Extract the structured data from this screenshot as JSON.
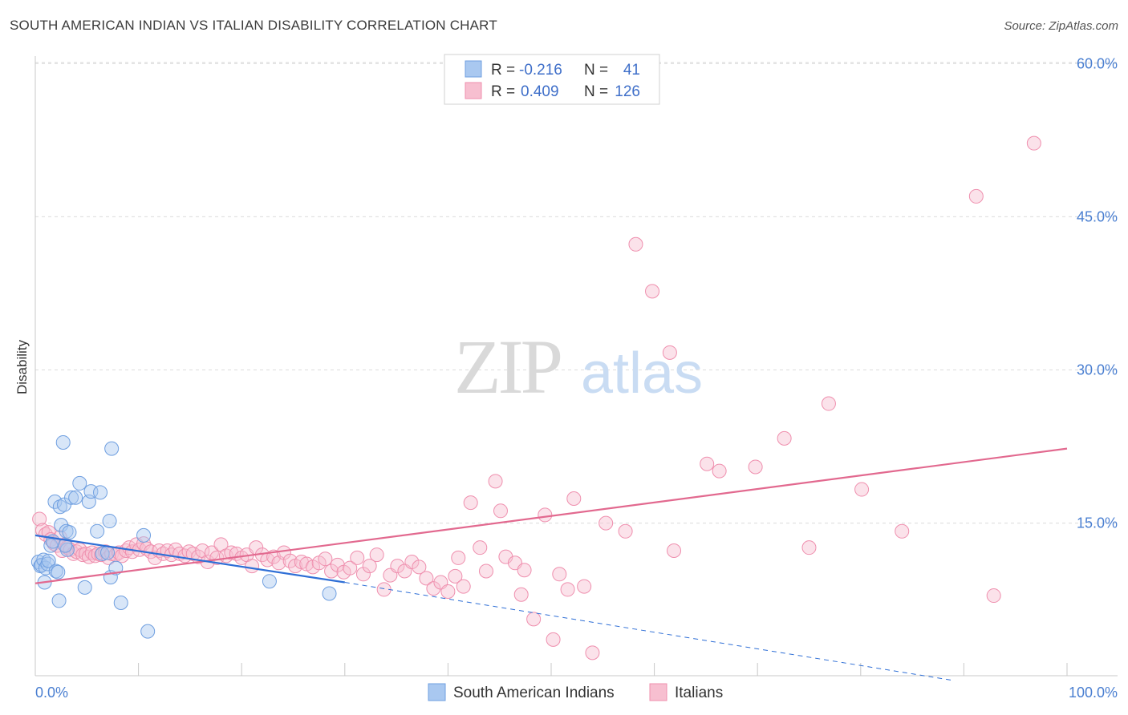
{
  "chart_data": {
    "type": "scatter",
    "title": "SOUTH AMERICAN INDIAN VS ITALIAN DISABILITY CORRELATION CHART",
    "source": "Source: ZipAtlas.com",
    "xlabel": "",
    "ylabel": "Disability",
    "xlim": [
      0,
      100
    ],
    "ylim": [
      0,
      63
    ],
    "x_tick_labels": [
      "0.0%",
      "100.0%"
    ],
    "y_ticks": [
      15,
      30,
      45,
      60
    ],
    "y_tick_labels": [
      "15.0%",
      "30.0%",
      "45.0%",
      "60.0%"
    ],
    "watermark": {
      "zip": "ZIP",
      "atlas": "atlas"
    },
    "colors": {
      "blue_fill": "#a9c8f0",
      "blue_stroke": "#6f9fe0",
      "blue_line": "#2f6fd6",
      "pink_fill": "#f7bfd0",
      "pink_stroke": "#ef8fae",
      "pink_line": "#e2698f",
      "grid": "#dcdcdc",
      "axis": "#c8c8c8"
    },
    "legend": {
      "rows": [
        {
          "r_label": "R =",
          "r_value": "-0.216",
          "n_label": "N =",
          "n_value": "41"
        },
        {
          "r_label": "R =",
          "r_value": "0.409",
          "n_label": "N =",
          "n_value": "126"
        }
      ]
    },
    "series": [
      {
        "name": "South American Indians",
        "trend": {
          "x0": 0,
          "y0": 13.8,
          "x1": 30,
          "y1": 9.2,
          "dash_x1": 100,
          "dash_y1": -2.2
        },
        "points": [
          [
            0.3,
            11.2
          ],
          [
            0.5,
            10.8
          ],
          [
            0.6,
            10.9
          ],
          [
            0.8,
            11.4
          ],
          [
            0.9,
            9.2
          ],
          [
            1.0,
            10.6
          ],
          [
            1.2,
            11.0
          ],
          [
            1.3,
            11.3
          ],
          [
            1.5,
            12.8
          ],
          [
            1.7,
            13.2
          ],
          [
            1.9,
            17.1
          ],
          [
            2.0,
            10.3
          ],
          [
            2.2,
            10.2
          ],
          [
            2.3,
            7.4
          ],
          [
            2.4,
            16.6
          ],
          [
            2.5,
            14.8
          ],
          [
            2.7,
            22.9
          ],
          [
            2.8,
            16.8
          ],
          [
            3.0,
            14.2
          ],
          [
            3.1,
            12.4
          ],
          [
            3.3,
            14.1
          ],
          [
            3.5,
            17.5
          ],
          [
            3.9,
            17.5
          ],
          [
            4.3,
            18.9
          ],
          [
            4.8,
            8.7
          ],
          [
            5.2,
            17.1
          ],
          [
            5.4,
            18.1
          ],
          [
            6.0,
            14.2
          ],
          [
            6.3,
            18.0
          ],
          [
            6.5,
            12.0
          ],
          [
            7.0,
            12.1
          ],
          [
            7.2,
            15.2
          ],
          [
            7.3,
            9.7
          ],
          [
            7.4,
            22.3
          ],
          [
            7.8,
            10.6
          ],
          [
            8.3,
            7.2
          ],
          [
            10.5,
            13.8
          ],
          [
            10.9,
            4.4
          ],
          [
            22.7,
            9.3
          ],
          [
            28.5,
            8.1
          ],
          [
            2.9,
            12.8
          ]
        ]
      },
      {
        "name": "Italians",
        "trend": {
          "x0": 0,
          "y0": 9.1,
          "x1": 100,
          "y1": 22.3
        },
        "points": [
          [
            0.4,
            15.4
          ],
          [
            0.7,
            14.3
          ],
          [
            1.0,
            13.9
          ],
          [
            1.3,
            14.1
          ],
          [
            1.5,
            13.4
          ],
          [
            1.8,
            13.0
          ],
          [
            2.1,
            12.8
          ],
          [
            2.4,
            13.6
          ],
          [
            2.6,
            12.3
          ],
          [
            2.9,
            12.9
          ],
          [
            3.1,
            12.6
          ],
          [
            3.4,
            12.4
          ],
          [
            3.7,
            12.0
          ],
          [
            4.0,
            12.2
          ],
          [
            4.3,
            12.4
          ],
          [
            4.6,
            11.9
          ],
          [
            4.9,
            12.0
          ],
          [
            5.2,
            11.7
          ],
          [
            5.5,
            12.1
          ],
          [
            5.8,
            11.8
          ],
          [
            6.1,
            12.0
          ],
          [
            6.4,
            11.9
          ],
          [
            6.8,
            12.2
          ],
          [
            7.1,
            11.6
          ],
          [
            7.4,
            12.0
          ],
          [
            7.8,
            11.9
          ],
          [
            8.1,
            12.1
          ],
          [
            8.4,
            11.8
          ],
          [
            8.8,
            12.3
          ],
          [
            9.1,
            12.6
          ],
          [
            9.4,
            12.2
          ],
          [
            9.8,
            12.9
          ],
          [
            10.1,
            12.4
          ],
          [
            10.5,
            13.0
          ],
          [
            10.8,
            12.5
          ],
          [
            11.2,
            12.2
          ],
          [
            11.6,
            11.6
          ],
          [
            12.0,
            12.3
          ],
          [
            12.4,
            12.0
          ],
          [
            12.8,
            12.3
          ],
          [
            13.2,
            11.9
          ],
          [
            13.6,
            12.4
          ],
          [
            14.0,
            12.0
          ],
          [
            14.5,
            11.8
          ],
          [
            14.9,
            12.2
          ],
          [
            15.3,
            12.0
          ],
          [
            15.8,
            11.7
          ],
          [
            16.2,
            12.3
          ],
          [
            16.7,
            11.2
          ],
          [
            17.1,
            12.1
          ],
          [
            17.6,
            11.6
          ],
          [
            18.0,
            12.9
          ],
          [
            18.5,
            11.8
          ],
          [
            19.0,
            12.1
          ],
          [
            19.5,
            12.0
          ],
          [
            20.0,
            11.6
          ],
          [
            20.5,
            11.9
          ],
          [
            21.0,
            10.8
          ],
          [
            21.4,
            12.6
          ],
          [
            22.0,
            11.9
          ],
          [
            22.5,
            11.4
          ],
          [
            23.1,
            11.7
          ],
          [
            23.6,
            11.1
          ],
          [
            24.1,
            12.1
          ],
          [
            24.7,
            11.3
          ],
          [
            25.2,
            10.8
          ],
          [
            25.8,
            11.2
          ],
          [
            26.3,
            11.0
          ],
          [
            26.9,
            10.7
          ],
          [
            27.5,
            11.1
          ],
          [
            28.1,
            11.5
          ],
          [
            28.7,
            10.3
          ],
          [
            29.3,
            10.9
          ],
          [
            29.9,
            10.2
          ],
          [
            30.5,
            10.6
          ],
          [
            31.2,
            11.6
          ],
          [
            31.8,
            10.0
          ],
          [
            32.4,
            10.8
          ],
          [
            33.1,
            11.9
          ],
          [
            33.8,
            8.5
          ],
          [
            34.4,
            9.9
          ],
          [
            35.1,
            10.8
          ],
          [
            35.8,
            10.3
          ],
          [
            36.5,
            11.2
          ],
          [
            37.2,
            10.7
          ],
          [
            37.9,
            9.6
          ],
          [
            38.6,
            8.6
          ],
          [
            39.3,
            9.2
          ],
          [
            40.0,
            8.3
          ],
          [
            40.7,
            9.8
          ],
          [
            41.0,
            11.6
          ],
          [
            41.5,
            8.8
          ],
          [
            42.2,
            17.0
          ],
          [
            43.1,
            12.6
          ],
          [
            43.7,
            10.3
          ],
          [
            44.6,
            19.1
          ],
          [
            45.1,
            16.2
          ],
          [
            45.6,
            11.7
          ],
          [
            46.5,
            11.1
          ],
          [
            47.1,
            8.0
          ],
          [
            47.4,
            10.4
          ],
          [
            48.3,
            5.6
          ],
          [
            49.4,
            15.8
          ],
          [
            50.2,
            3.6
          ],
          [
            50.8,
            10.0
          ],
          [
            51.6,
            8.5
          ],
          [
            52.2,
            17.4
          ],
          [
            53.2,
            8.8
          ],
          [
            54.0,
            2.3
          ],
          [
            55.3,
            15.0
          ],
          [
            57.2,
            14.2
          ],
          [
            58.2,
            42.3
          ],
          [
            59.8,
            37.7
          ],
          [
            61.5,
            31.7
          ],
          [
            61.9,
            12.3
          ],
          [
            65.1,
            20.8
          ],
          [
            66.3,
            20.1
          ],
          [
            69.8,
            20.5
          ],
          [
            72.6,
            23.3
          ],
          [
            75.0,
            12.6
          ],
          [
            76.9,
            26.7
          ],
          [
            80.1,
            18.3
          ],
          [
            84.0,
            14.2
          ],
          [
            91.2,
            47.0
          ],
          [
            92.9,
            7.9
          ],
          [
            96.8,
            52.2
          ]
        ]
      }
    ]
  }
}
